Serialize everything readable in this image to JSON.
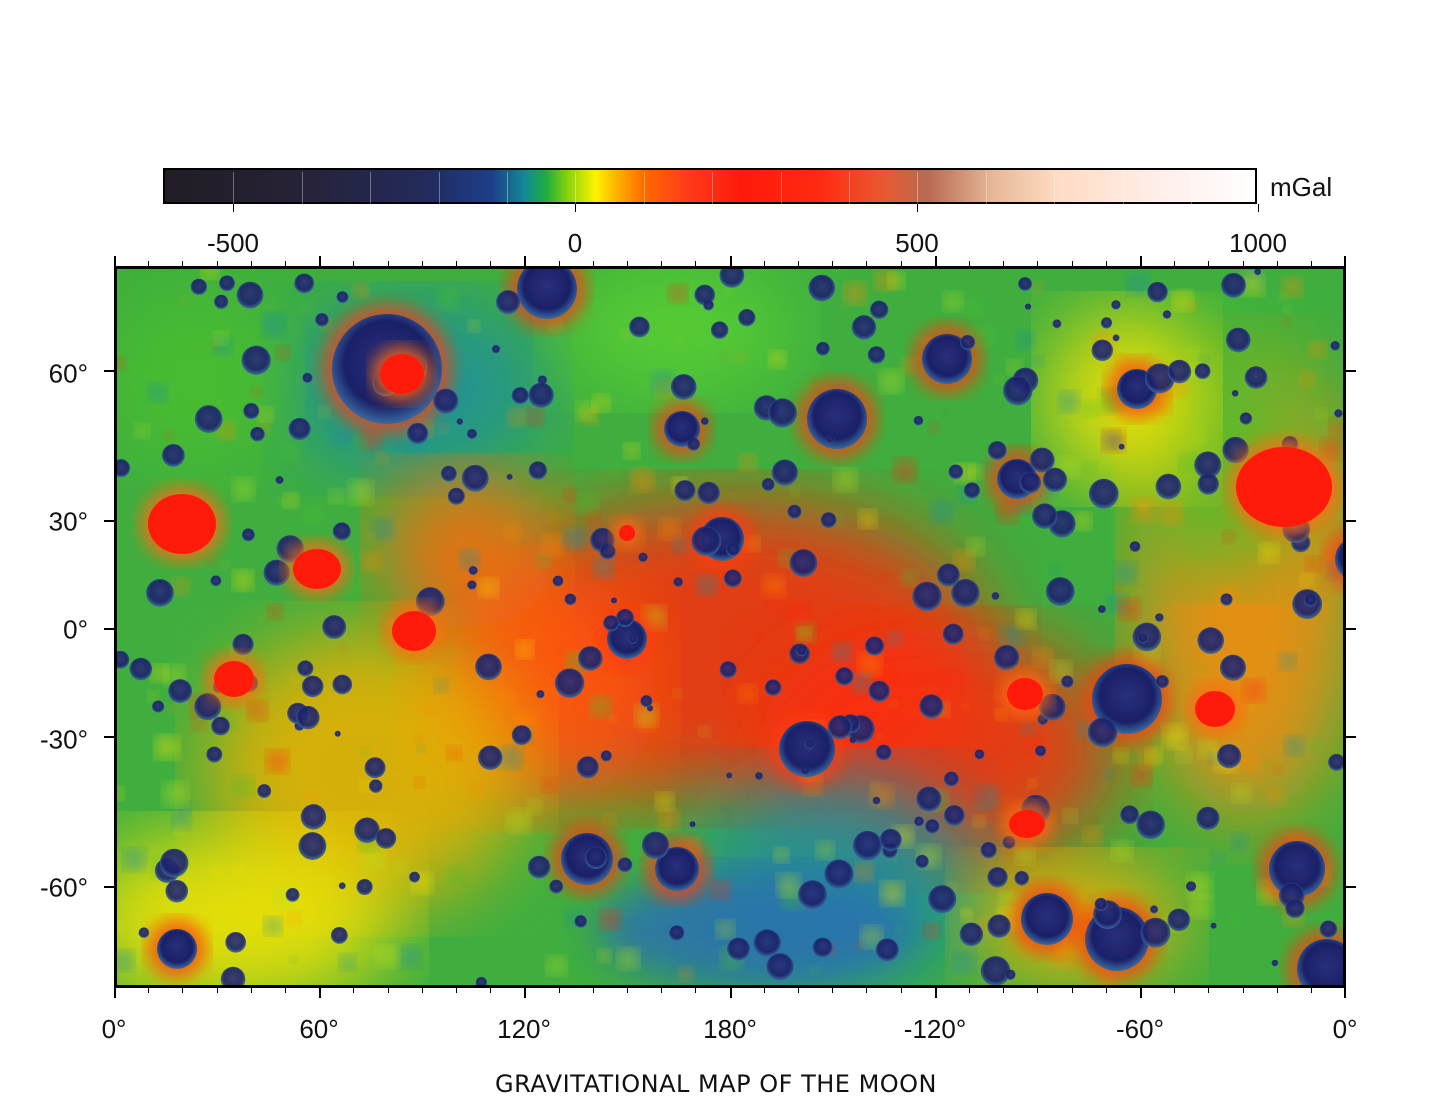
{
  "colorbar": {
    "unit": "mGal",
    "ticks": [
      {
        "value": -500,
        "label": "-500"
      },
      {
        "value": 0,
        "label": "0"
      },
      {
        "value": 500,
        "label": "500"
      },
      {
        "value": 1000,
        "label": "1000"
      }
    ],
    "range": [
      -600,
      1000
    ]
  },
  "axes": {
    "latitude_ticks": [
      {
        "value": 60,
        "label": "60°"
      },
      {
        "value": 30,
        "label": "30°"
      },
      {
        "value": 0,
        "label": "0°"
      },
      {
        "value": -30,
        "label": "-30°"
      },
      {
        "value": -60,
        "label": "-60°"
      }
    ],
    "longitude_ticks": [
      {
        "value": 0,
        "label": "0°"
      },
      {
        "value": 60,
        "label": "60°"
      },
      {
        "value": 120,
        "label": "120°"
      },
      {
        "value": 180,
        "label": "180°"
      },
      {
        "value": -120,
        "label": "-120°"
      },
      {
        "value": -60,
        "label": "-60°"
      },
      {
        "value": 0,
        "label": "0°"
      }
    ]
  },
  "caption": "GRAVITATIONAL MAP OF THE MOON",
  "colors": {
    "low": "#1b2466",
    "mid_low": "#1f8fa0",
    "mid": "#4cbf2e",
    "zero": "#ffe600",
    "high": "#ff2a10",
    "peak": "#ffffff"
  }
}
